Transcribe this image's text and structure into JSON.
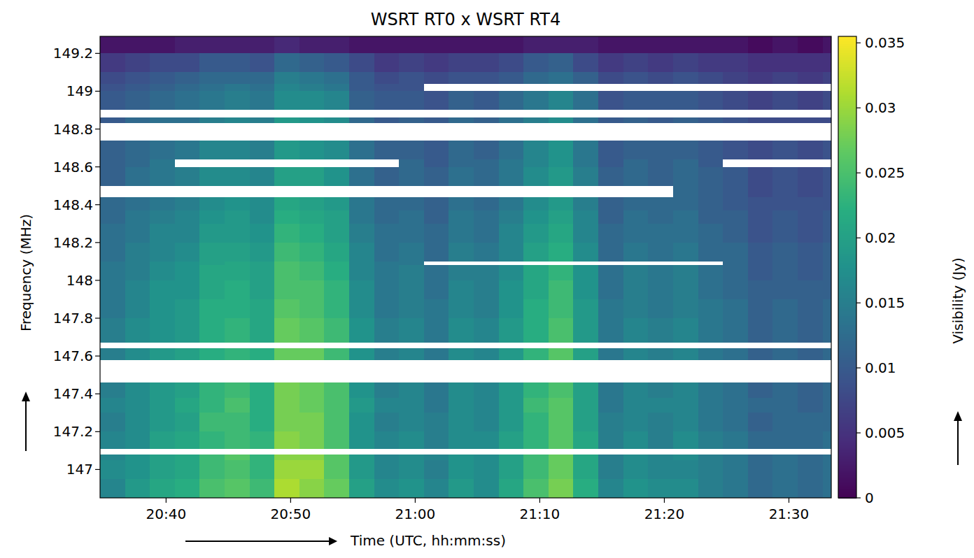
{
  "chart_data": {
    "type": "heatmap",
    "title": "WSRT RT0 x WSRT RT4",
    "x_label": "Time (UTC, hh:mm:ss)",
    "y_label": "Frequency (MHz)",
    "xlim": [
      1234.7,
      1293.4
    ],
    "ylim": [
      146.85,
      149.29
    ],
    "xticks": [
      {
        "value": 1240,
        "label": "20:40"
      },
      {
        "value": 1250,
        "label": "20:50"
      },
      {
        "value": 1260,
        "label": "21:00"
      },
      {
        "value": 1270,
        "label": "21:10"
      },
      {
        "value": 1280,
        "label": "21:20"
      },
      {
        "value": 1290,
        "label": "21:30"
      }
    ],
    "yticks": [
      147,
      147.2,
      147.4,
      147.6,
      147.8,
      148,
      148.2,
      148.4,
      148.6,
      148.8,
      149,
      149.2
    ],
    "colorbar_label": "Visibility (Jy)",
    "colorbar_range": [
      0,
      0.0355
    ],
    "colorbar_ticks": [
      0,
      0.005,
      0.01,
      0.015,
      0.02,
      0.025,
      0.03,
      0.035
    ],
    "x_edges": [
      1234.7,
      1236.7,
      1238.7,
      1240.7,
      1242.7,
      1244.7,
      1246.7,
      1248.7,
      1250.7,
      1252.7,
      1254.7,
      1256.7,
      1258.7,
      1260.7,
      1262.7,
      1264.7,
      1266.7,
      1268.7,
      1270.7,
      1272.7,
      1274.7,
      1276.7,
      1278.7,
      1280.7,
      1282.7,
      1284.7,
      1286.7,
      1288.7,
      1290.7,
      1292.7,
      1293.4
    ],
    "y_edges": [
      146.85,
      146.95,
      147.05,
      147.08,
      147.11,
      147.2,
      147.3,
      147.38,
      147.46,
      147.58,
      147.64,
      147.67,
      147.8,
      147.9,
      148.0,
      148.08,
      148.1,
      148.2,
      148.3,
      148.37,
      148.44,
      148.5,
      148.6,
      148.64,
      148.74,
      148.83,
      148.86,
      148.9,
      149.0,
      149.04,
      149.1,
      149.2,
      149.29
    ],
    "cells": [
      [
        0.016,
        0.019,
        0.021,
        0.022,
        0.025,
        0.026,
        0.024,
        0.031,
        0.029,
        0.027,
        0.02,
        0.017,
        0.018,
        0.016,
        0.019,
        0.017,
        0.021,
        0.025,
        0.028,
        0.022,
        0.016,
        0.018,
        0.017,
        0.017,
        0.015,
        0.014,
        0.012,
        0.013,
        0.012,
        0.013
      ],
      [
        0.017,
        0.018,
        0.02,
        0.021,
        0.024,
        0.025,
        0.023,
        0.03,
        0.03,
        0.026,
        0.019,
        0.016,
        0.017,
        0.015,
        0.018,
        0.017,
        0.02,
        0.024,
        0.027,
        0.021,
        0.015,
        0.017,
        0.016,
        0.016,
        0.015,
        0.014,
        0.012,
        0.013,
        0.012,
        0.013
      ],
      [
        0.016,
        0.018,
        0.02,
        0.021,
        0.024,
        0.026,
        0.023,
        0.029,
        0.029,
        0.026,
        0.019,
        0.016,
        0.017,
        0.016,
        0.018,
        0.017,
        0.02,
        0.024,
        0.027,
        0.021,
        0.015,
        0.017,
        0.016,
        0.017,
        0.015,
        0.014,
        0.012,
        0.013,
        0.012,
        0.013
      ],
      [
        null,
        null,
        null,
        null,
        null,
        null,
        null,
        null,
        null,
        null,
        null,
        null,
        null,
        null,
        null,
        null,
        null,
        null,
        null,
        null,
        null,
        null,
        null,
        null,
        null,
        null,
        null,
        null,
        null,
        null
      ],
      [
        0.016,
        0.017,
        0.02,
        0.021,
        0.023,
        0.024,
        0.023,
        0.029,
        0.028,
        0.025,
        0.018,
        0.016,
        0.017,
        0.015,
        0.017,
        0.017,
        0.02,
        0.023,
        0.026,
        0.021,
        0.015,
        0.017,
        0.015,
        0.017,
        0.015,
        0.014,
        0.012,
        0.012,
        0.012,
        0.013
      ],
      [
        0.015,
        0.017,
        0.019,
        0.02,
        0.024,
        0.024,
        0.022,
        0.028,
        0.028,
        0.025,
        0.018,
        0.015,
        0.016,
        0.015,
        0.017,
        0.016,
        0.019,
        0.023,
        0.026,
        0.02,
        0.015,
        0.016,
        0.015,
        0.016,
        0.014,
        0.013,
        0.011,
        0.012,
        0.012,
        0.012
      ],
      [
        0.016,
        0.017,
        0.019,
        0.021,
        0.023,
        0.025,
        0.022,
        0.028,
        0.027,
        0.025,
        0.019,
        0.016,
        0.016,
        0.014,
        0.017,
        0.016,
        0.019,
        0.024,
        0.026,
        0.02,
        0.014,
        0.016,
        0.016,
        0.016,
        0.014,
        0.013,
        0.012,
        0.012,
        0.011,
        0.012
      ],
      [
        0.015,
        0.017,
        0.019,
        0.02,
        0.023,
        0.024,
        0.022,
        0.028,
        0.027,
        0.025,
        0.018,
        0.015,
        0.016,
        0.014,
        0.017,
        0.016,
        0.019,
        0.023,
        0.025,
        0.02,
        0.014,
        0.016,
        0.015,
        0.016,
        0.014,
        0.013,
        0.011,
        0.012,
        0.011,
        0.012
      ],
      [
        null,
        null,
        null,
        null,
        null,
        null,
        null,
        null,
        null,
        null,
        null,
        null,
        null,
        null,
        null,
        null,
        null,
        null,
        null,
        null,
        null,
        null,
        null,
        null,
        null,
        null,
        null,
        null,
        null,
        null
      ],
      [
        0.015,
        0.017,
        0.019,
        0.02,
        0.022,
        0.023,
        0.022,
        0.027,
        0.027,
        0.024,
        0.018,
        0.015,
        0.016,
        0.014,
        0.017,
        0.016,
        0.019,
        0.023,
        0.026,
        0.02,
        0.014,
        0.016,
        0.015,
        0.016,
        0.014,
        0.013,
        0.011,
        0.012,
        0.011,
        0.012
      ],
      [
        null,
        null,
        null,
        null,
        null,
        null,
        null,
        null,
        null,
        null,
        null,
        null,
        null,
        null,
        null,
        null,
        null,
        null,
        null,
        null,
        null,
        null,
        null,
        null,
        null,
        null,
        null,
        null,
        null,
        null
      ],
      [
        0.015,
        0.017,
        0.018,
        0.019,
        0.022,
        0.023,
        0.021,
        0.027,
        0.026,
        0.024,
        0.018,
        0.015,
        0.016,
        0.014,
        0.017,
        0.016,
        0.019,
        0.022,
        0.025,
        0.019,
        0.014,
        0.016,
        0.015,
        0.016,
        0.014,
        0.013,
        0.011,
        0.012,
        0.011,
        0.012
      ],
      [
        0.014,
        0.016,
        0.018,
        0.019,
        0.022,
        0.022,
        0.021,
        0.026,
        0.025,
        0.023,
        0.017,
        0.014,
        0.015,
        0.014,
        0.016,
        0.015,
        0.018,
        0.022,
        0.024,
        0.019,
        0.014,
        0.015,
        0.014,
        0.015,
        0.014,
        0.013,
        0.011,
        0.012,
        0.011,
        0.012
      ],
      [
        0.014,
        0.016,
        0.018,
        0.018,
        0.021,
        0.022,
        0.02,
        0.025,
        0.025,
        0.023,
        0.017,
        0.014,
        0.015,
        0.013,
        0.016,
        0.015,
        0.018,
        0.021,
        0.024,
        0.018,
        0.013,
        0.015,
        0.014,
        0.015,
        0.013,
        0.012,
        0.011,
        0.011,
        0.011,
        0.011
      ],
      [
        0.014,
        0.015,
        0.017,
        0.018,
        0.021,
        0.021,
        0.02,
        0.025,
        0.024,
        0.022,
        0.016,
        0.014,
        0.015,
        0.013,
        0.015,
        0.015,
        0.017,
        0.021,
        0.023,
        0.018,
        0.013,
        0.015,
        0.014,
        0.015,
        0.013,
        0.012,
        0.01,
        0.011,
        0.01,
        0.011
      ],
      [
        0.014,
        0.015,
        0.017,
        0.018,
        0.02,
        0.021,
        0.02,
        0.025,
        0.024,
        0.022,
        0.016,
        0.014,
        0.014,
        null,
        null,
        null,
        null,
        null,
        null,
        null,
        null,
        null,
        null,
        null,
        null,
        0.012,
        0.01,
        0.011,
        0.01,
        0.011
      ],
      [
        0.013,
        0.015,
        0.016,
        0.017,
        0.02,
        0.02,
        0.019,
        0.024,
        0.023,
        0.021,
        0.016,
        0.013,
        0.014,
        0.012,
        0.015,
        0.014,
        0.016,
        0.02,
        0.022,
        0.017,
        0.012,
        0.014,
        0.013,
        0.014,
        0.012,
        0.012,
        0.01,
        0.011,
        0.01,
        0.011
      ],
      [
        0.013,
        0.014,
        0.016,
        0.016,
        0.019,
        0.019,
        0.018,
        0.023,
        0.022,
        0.02,
        0.015,
        0.013,
        0.013,
        0.012,
        0.014,
        0.013,
        0.016,
        0.019,
        0.021,
        0.016,
        0.012,
        0.013,
        0.013,
        0.013,
        0.012,
        0.011,
        0.009,
        0.01,
        0.009,
        0.01
      ],
      [
        0.012,
        0.014,
        0.015,
        0.016,
        0.018,
        0.019,
        0.017,
        0.022,
        0.021,
        0.02,
        0.014,
        0.012,
        0.013,
        0.011,
        0.014,
        0.013,
        0.015,
        0.018,
        0.02,
        0.016,
        0.011,
        0.013,
        0.012,
        0.013,
        0.011,
        0.011,
        0.009,
        0.01,
        0.009,
        0.01
      ],
      [
        0.012,
        0.013,
        0.014,
        0.015,
        0.017,
        0.018,
        0.017,
        0.021,
        0.02,
        0.019,
        0.014,
        0.012,
        0.012,
        0.011,
        0.013,
        0.012,
        0.014,
        0.017,
        0.019,
        0.015,
        0.011,
        0.012,
        0.012,
        0.012,
        0.011,
        0.01,
        0.009,
        0.009,
        0.009,
        0.009
      ],
      [
        null,
        null,
        null,
        null,
        null,
        null,
        null,
        null,
        null,
        null,
        null,
        null,
        null,
        null,
        null,
        null,
        null,
        null,
        null,
        null,
        null,
        null,
        null,
        0.012,
        0.011,
        0.01,
        0.008,
        0.009,
        0.008,
        0.009
      ],
      [
        0.011,
        0.013,
        0.014,
        0.015,
        0.017,
        0.017,
        0.016,
        0.02,
        0.02,
        0.018,
        0.013,
        0.011,
        0.012,
        0.011,
        0.013,
        0.012,
        0.014,
        0.017,
        0.019,
        0.015,
        0.011,
        0.012,
        0.011,
        0.012,
        0.011,
        0.01,
        0.008,
        0.009,
        0.008,
        0.009
      ],
      [
        0.011,
        0.012,
        0.014,
        null,
        null,
        null,
        null,
        null,
        null,
        null,
        null,
        null,
        0.012,
        0.01,
        0.012,
        0.012,
        0.014,
        0.016,
        0.018,
        0.014,
        0.01,
        0.012,
        0.011,
        0.012,
        0.01,
        null,
        null,
        null,
        null,
        null
      ],
      [
        0.011,
        0.012,
        0.013,
        0.014,
        0.016,
        0.016,
        0.015,
        0.019,
        0.018,
        0.017,
        0.013,
        0.011,
        0.011,
        0.01,
        0.012,
        0.011,
        0.013,
        0.016,
        0.018,
        0.014,
        0.01,
        0.011,
        0.011,
        0.011,
        0.01,
        0.009,
        0.008,
        0.009,
        0.008,
        0.009
      ],
      [
        null,
        null,
        null,
        null,
        null,
        null,
        null,
        null,
        null,
        null,
        null,
        null,
        null,
        null,
        null,
        null,
        null,
        null,
        null,
        null,
        null,
        null,
        null,
        null,
        null,
        null,
        null,
        null,
        null,
        null
      ],
      [
        0.01,
        0.012,
        0.013,
        0.013,
        0.015,
        0.016,
        0.015,
        0.019,
        0.018,
        0.017,
        0.012,
        0.01,
        0.011,
        0.01,
        0.012,
        0.011,
        0.013,
        0.015,
        0.017,
        0.013,
        0.01,
        0.011,
        0.01,
        0.011,
        0.01,
        0.009,
        0.008,
        0.008,
        0.008,
        0.008
      ],
      [
        null,
        null,
        null,
        null,
        null,
        null,
        null,
        null,
        null,
        null,
        null,
        null,
        null,
        null,
        null,
        null,
        null,
        null,
        null,
        null,
        null,
        null,
        null,
        null,
        null,
        null,
        null,
        null,
        null,
        null
      ],
      [
        0.01,
        0.011,
        0.012,
        0.013,
        0.014,
        0.015,
        0.014,
        0.017,
        0.017,
        0.016,
        0.011,
        0.01,
        0.01,
        0.009,
        0.011,
        0.01,
        0.012,
        0.014,
        0.016,
        0.013,
        0.009,
        0.01,
        0.01,
        0.01,
        0.009,
        0.008,
        0.007,
        0.008,
        0.007,
        0.008
      ],
      [
        0.009,
        0.01,
        0.011,
        0.012,
        0.013,
        0.014,
        0.013,
        0.016,
        0.015,
        0.014,
        0.01,
        0.009,
        0.009,
        null,
        null,
        null,
        null,
        null,
        null,
        null,
        null,
        null,
        null,
        null,
        null,
        null,
        null,
        null,
        null,
        null
      ],
      [
        0.008,
        0.009,
        0.01,
        0.011,
        0.012,
        0.012,
        0.012,
        0.015,
        0.014,
        0.013,
        0.01,
        0.008,
        0.009,
        0.008,
        0.009,
        0.009,
        0.01,
        0.012,
        0.013,
        0.011,
        0.008,
        0.009,
        0.008,
        0.009,
        0.008,
        0.007,
        0.006,
        0.007,
        0.006,
        0.007
      ],
      [
        0.006,
        0.007,
        0.008,
        0.008,
        0.01,
        0.01,
        0.009,
        0.012,
        0.011,
        0.01,
        0.008,
        0.006,
        0.007,
        0.006,
        0.007,
        0.007,
        0.008,
        0.01,
        0.011,
        0.008,
        0.006,
        0.007,
        0.006,
        0.007,
        0.006,
        0.006,
        0.005,
        0.005,
        0.005,
        0.005
      ],
      [
        0.002,
        0.002,
        0.002,
        0.003,
        0.003,
        0.003,
        0.003,
        0.004,
        0.003,
        0.003,
        0.002,
        0.002,
        0.002,
        0.002,
        0.002,
        0.002,
        0.002,
        0.003,
        0.003,
        0.003,
        0.002,
        0.002,
        0.002,
        0.002,
        0.002,
        0.002,
        0.001,
        0.002,
        0.001,
        0.002
      ]
    ]
  }
}
